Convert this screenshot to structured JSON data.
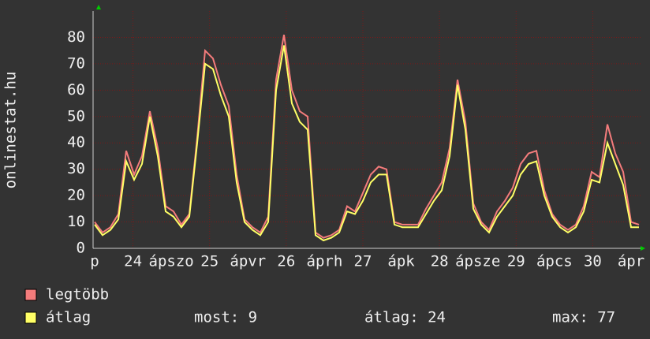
{
  "chart_data": {
    "type": "line",
    "y_label": "onlinestat.hu",
    "x_tick_labels": [
      "p",
      "24",
      "ápszo",
      "25",
      "ápvr",
      "26",
      "áprh",
      "27",
      "ápk",
      "28",
      "ápsze",
      "29",
      "ápcs",
      "30",
      "ápr"
    ],
    "series": [
      {
        "name": "legtöbb",
        "color": "#f47c7c",
        "values": [
          10,
          6,
          8,
          13,
          37,
          28,
          35,
          52,
          38,
          16,
          14,
          9,
          13,
          42,
          75,
          72,
          62,
          54,
          28,
          11,
          8,
          6,
          12,
          64,
          81,
          60,
          52,
          50,
          6,
          4,
          5,
          7,
          16,
          14,
          21,
          28,
          31,
          30,
          10,
          9,
          9,
          9,
          15,
          20,
          25,
          38,
          64,
          48,
          17,
          10,
          7,
          14,
          18,
          23,
          32,
          36,
          37,
          22,
          13,
          9,
          7,
          9,
          16,
          29,
          27,
          47,
          36,
          29,
          10,
          9
        ]
      },
      {
        "name": "átlag",
        "color": "#ffff66",
        "values": [
          9,
          5,
          7,
          11,
          33,
          26,
          32,
          50,
          35,
          14,
          12,
          8,
          12,
          40,
          70,
          68,
          58,
          50,
          25,
          10,
          7,
          5,
          10,
          60,
          77,
          55,
          48,
          45,
          5,
          3,
          4,
          6,
          14,
          13,
          18,
          25,
          28,
          28,
          9,
          8,
          8,
          8,
          13,
          18,
          22,
          35,
          62,
          45,
          15,
          9,
          6,
          12,
          16,
          20,
          28,
          32,
          33,
          20,
          12,
          8,
          6,
          8,
          14,
          26,
          25,
          40,
          32,
          24,
          8,
          8
        ]
      }
    ],
    "ylim": [
      0,
      90
    ],
    "yticks": [
      0,
      10,
      20,
      30,
      40,
      50,
      60,
      70,
      80
    ],
    "grid": true,
    "stats": [
      "most: 9",
      "átlag: 24",
      "max: 77"
    ]
  }
}
